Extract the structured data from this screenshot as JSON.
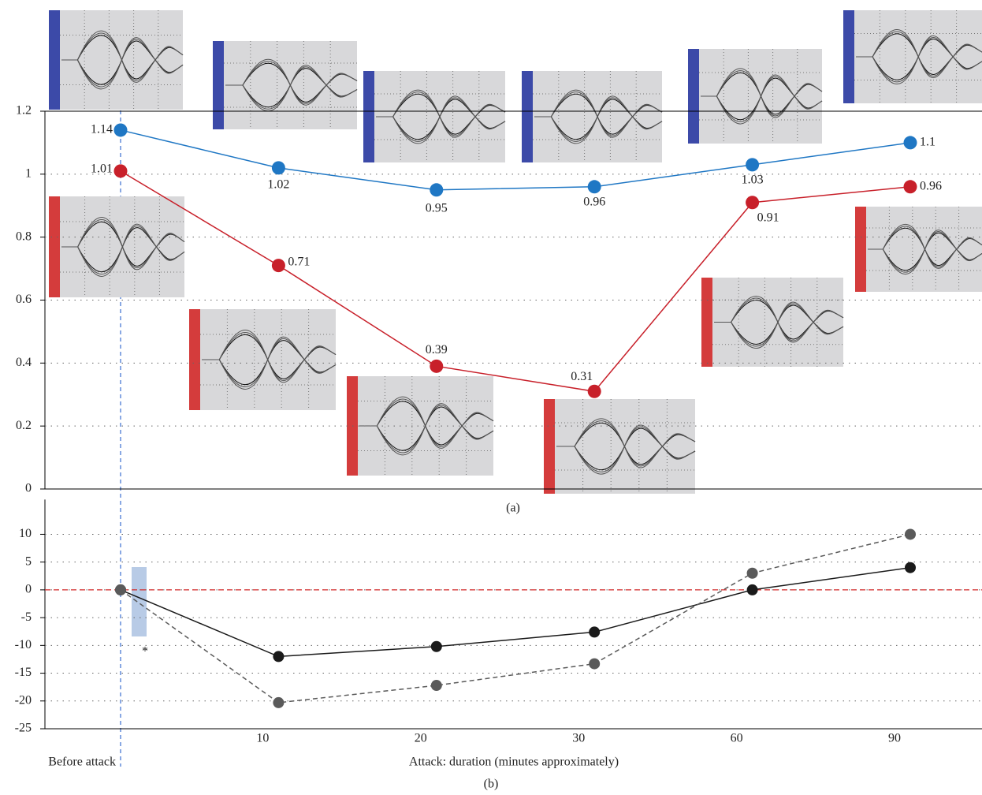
{
  "chart_data": [
    {
      "type": "line",
      "panel_label": "(a)",
      "ylim": [
        0,
        1.2
      ],
      "yticks": [
        0,
        0.2,
        0.4,
        0.6,
        0.8,
        1,
        1.2
      ],
      "grid": true,
      "series": [
        {
          "color": "#1f77c4",
          "values": [
            1.14,
            1.02,
            0.95,
            0.96,
            1.03,
            1.1
          ]
        },
        {
          "color": "#c8202a",
          "values": [
            1.01,
            0.71,
            0.39,
            0.31,
            0.91,
            0.96
          ]
        }
      ]
    },
    {
      "type": "line",
      "panel_label": "(b)",
      "categories": [
        "Before attack",
        "10",
        "20",
        "30",
        "60",
        "90"
      ],
      "x_label": "Attack: duration (minutes approximately)",
      "ylim": [
        -25,
        12
      ],
      "yticks": [
        -25,
        -20,
        -15,
        -10,
        -5,
        0,
        5,
        10
      ],
      "grid": true,
      "annotation": "*",
      "reference_line": {
        "value": 0,
        "color": "#d42a2a",
        "style": "dashed"
      },
      "series": [
        {
          "color": "#1a1a1a",
          "style": "solid",
          "values": [
            0,
            -12,
            -10.2,
            -7.6,
            0,
            4
          ]
        },
        {
          "color": "#5a5a5a",
          "style": "dashed",
          "values": [
            0,
            -20.3,
            -17.2,
            -13.3,
            3,
            10
          ]
        }
      ]
    }
  ]
}
